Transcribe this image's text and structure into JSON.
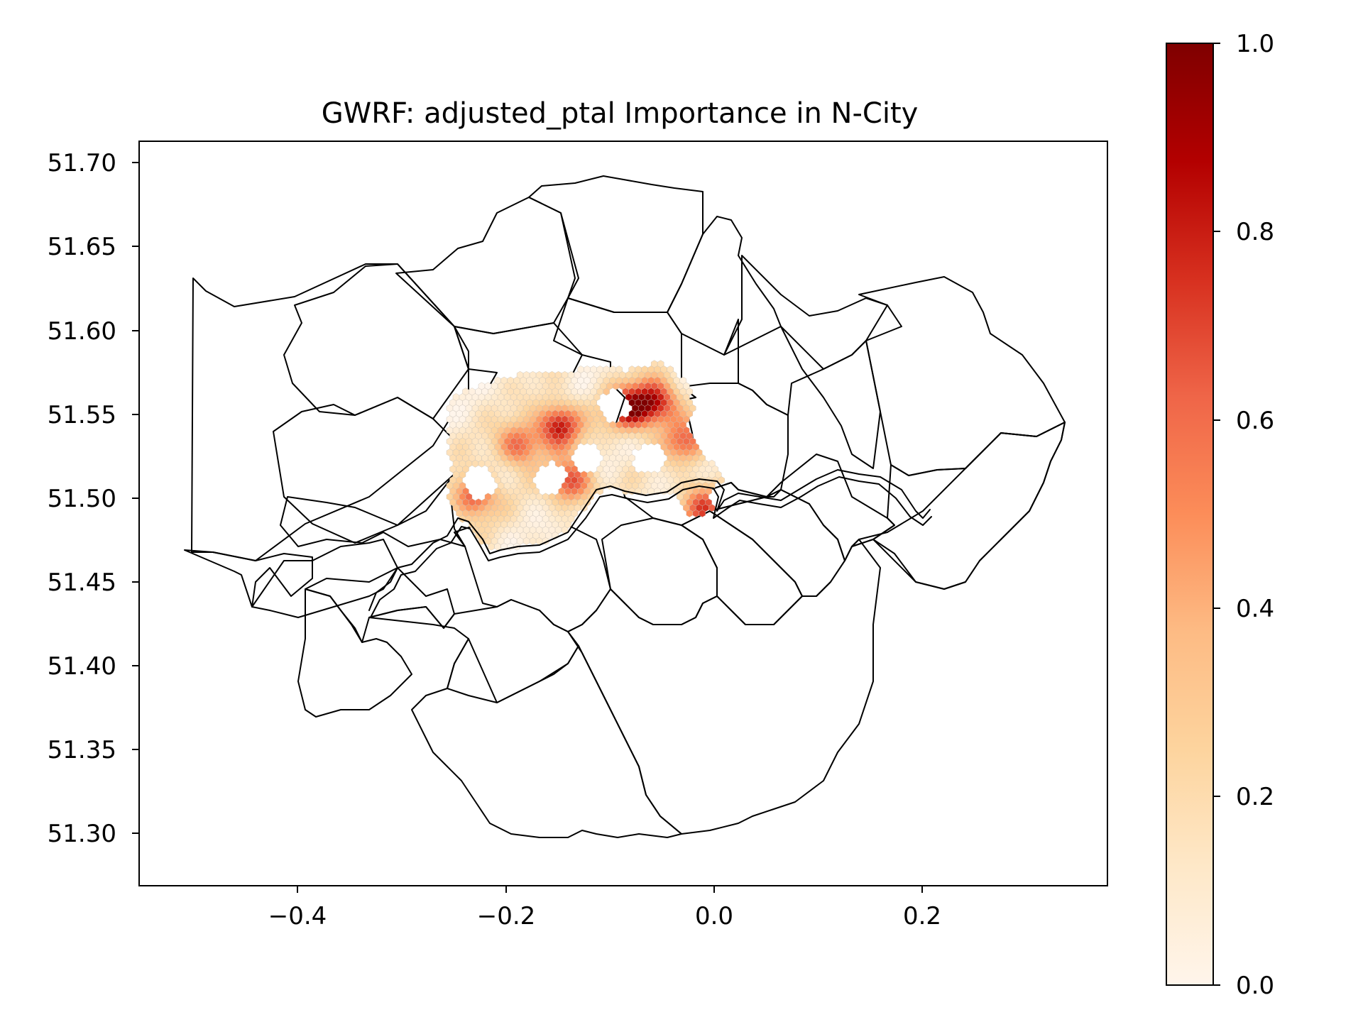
{
  "title": "GWRF: adjusted_ptal Importance in N-City",
  "colors": {
    "boundary": "#000000",
    "cmap_low": "#fff5eb",
    "cmap_high": "#7f0000",
    "cmap_stops": [
      "#fff5eb",
      "#fee8c8",
      "#fdd49e",
      "#fdbb84",
      "#fc8d59",
      "#ef6548",
      "#d7301f",
      "#b30000",
      "#7f0000"
    ],
    "background": "#ffffff"
  },
  "colormap_name": "OrRd",
  "chart_data": {
    "type": "heatmap",
    "title": "GWRF: adjusted_ptal Importance in N-City",
    "xlabel": "",
    "ylabel": "",
    "xlim": [
      -0.555,
      0.375
    ],
    "ylim": [
      51.2665,
      51.712
    ],
    "xticks": [
      -0.4,
      -0.2,
      0.0,
      0.2
    ],
    "xtick_labels": [
      "−0.4",
      "−0.2",
      "0.0",
      "0.2"
    ],
    "yticks": [
      51.3,
      51.35,
      51.4,
      51.45,
      51.5,
      51.55,
      51.6,
      51.65,
      51.7
    ],
    "ytick_labels": [
      "51.30",
      "51.35",
      "51.40",
      "51.45",
      "51.50",
      "51.55",
      "51.60",
      "51.65",
      "51.70"
    ],
    "colorbar": {
      "range": [
        0.0,
        1.0
      ],
      "ticks": [
        0.0,
        0.2,
        0.4,
        0.6,
        0.8,
        1.0
      ],
      "tick_labels": [
        "0.0",
        "0.2",
        "0.4",
        "0.6",
        "0.8",
        "1.0"
      ]
    },
    "hotspots": [
      {
        "x": -0.152,
        "y": 51.542,
        "value": 0.75
      },
      {
        "x": -0.085,
        "y": 51.552,
        "value": 0.8
      },
      {
        "x": -0.058,
        "y": 51.556,
        "value": 0.72
      },
      {
        "x": -0.233,
        "y": 51.5,
        "value": 0.6
      },
      {
        "x": -0.14,
        "y": 51.508,
        "value": 0.62
      },
      {
        "x": -0.19,
        "y": 51.53,
        "value": 0.55
      },
      {
        "x": -0.03,
        "y": 51.532,
        "value": 0.5
      },
      {
        "x": -0.015,
        "y": 51.493,
        "value": 0.55
      }
    ],
    "voids": [
      {
        "x": -0.16,
        "y": 51.51
      },
      {
        "x": -0.125,
        "y": 51.522
      },
      {
        "x": -0.065,
        "y": 51.522
      },
      {
        "x": -0.098,
        "y": 51.554
      },
      {
        "x": -0.228,
        "y": 51.508
      }
    ]
  }
}
